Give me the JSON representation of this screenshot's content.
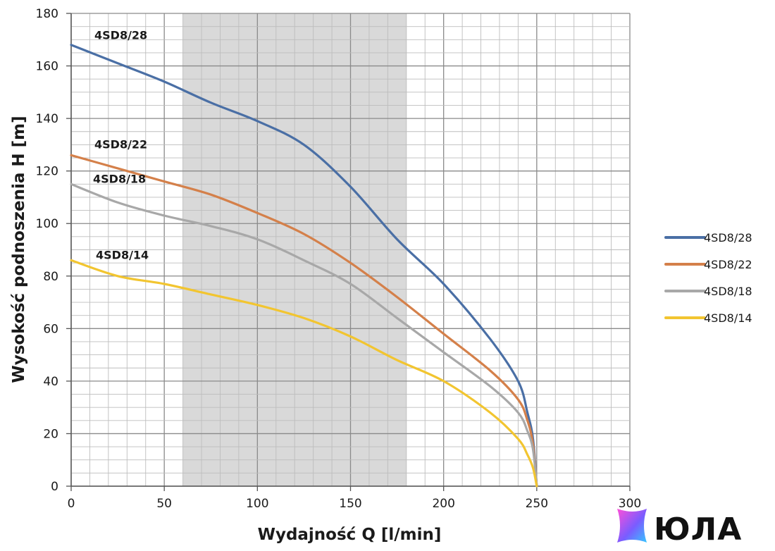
{
  "chart_data": {
    "type": "line",
    "xlabel": "Wydajność Q [l/min]",
    "ylabel": "Wysokość podnoszenia H [m]",
    "xlim": [
      0,
      300
    ],
    "ylim": [
      0,
      180
    ],
    "x_ticks": [
      "0",
      "50",
      "100",
      "150",
      "200",
      "250",
      "300"
    ],
    "y_ticks": [
      "0",
      "20",
      "40",
      "60",
      "80",
      "100",
      "120",
      "140",
      "160",
      "180"
    ],
    "grid": true,
    "minor_grid_step_x": 10,
    "minor_grid_step_y": 5,
    "shaded_band": {
      "x_from": 60,
      "x_to": 180,
      "color": "#d9d9d9"
    },
    "legend_position": "right",
    "series": [
      {
        "name": "4SD8/28",
        "color": "#4a6fa5",
        "x": [
          0,
          25,
          50,
          75,
          100,
          125,
          150,
          175,
          200,
          225,
          240,
          245,
          248,
          250
        ],
        "y": [
          168,
          161,
          154,
          146,
          139,
          130,
          114,
          94,
          77,
          56,
          40,
          28,
          18,
          0
        ]
      },
      {
        "name": "4SD8/22",
        "color": "#d4804a",
        "x": [
          0,
          25,
          50,
          75,
          100,
          125,
          150,
          175,
          200,
          225,
          240,
          245,
          248,
          250
        ],
        "y": [
          126,
          121,
          116,
          111,
          104,
          96,
          85,
          72,
          58,
          44,
          33,
          25,
          16,
          0
        ]
      },
      {
        "name": "4SD8/18",
        "color": "#a8a8a8",
        "x": [
          0,
          25,
          50,
          75,
          100,
          125,
          150,
          175,
          200,
          225,
          240,
          245,
          248,
          250
        ],
        "y": [
          115,
          108,
          103,
          99,
          94,
          86,
          77,
          64,
          51,
          38,
          28,
          21,
          14,
          0
        ]
      },
      {
        "name": "4SD8/14",
        "color": "#f2c530",
        "x": [
          0,
          25,
          50,
          75,
          100,
          125,
          150,
          175,
          200,
          225,
          240,
          245,
          248,
          250
        ],
        "y": [
          86,
          80,
          77,
          73,
          69,
          64,
          57,
          48,
          40,
          28,
          18,
          12,
          7,
          0
        ]
      }
    ],
    "curve_labels": [
      {
        "text": "4SD8/28",
        "series": "4SD8/28"
      },
      {
        "text": "4SD8/22",
        "series": "4SD8/22"
      },
      {
        "text": "4SD8/18",
        "series": "4SD8/18"
      },
      {
        "text": "4SD8/14",
        "series": "4SD8/14"
      }
    ]
  },
  "watermark": {
    "text": "ЮЛА",
    "logo_colors": [
      "#ff4fd8",
      "#7a5cff",
      "#36c6ff"
    ]
  }
}
